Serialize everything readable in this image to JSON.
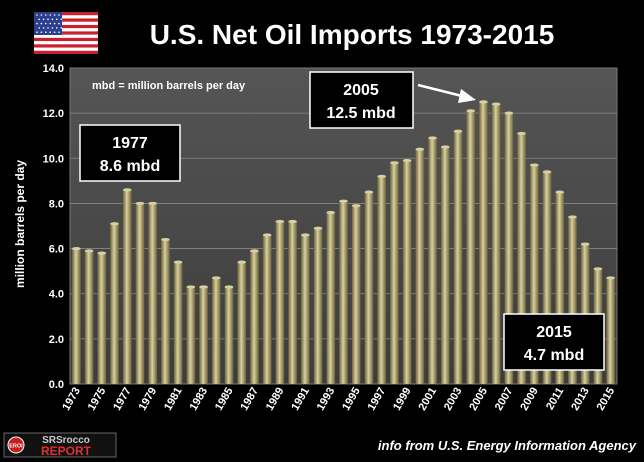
{
  "header": {
    "title": "U.S. Net Oil Imports 1973-2015",
    "flag_icon": "us-flag-icon"
  },
  "footer": {
    "logo_line1": "SRSrocco",
    "logo_line2": "REPORT",
    "logo_badge": "EROI",
    "source": "info from U.S. Energy Information Agency"
  },
  "colors": {
    "background": "#000000",
    "plot_background": "#4a4a4a",
    "grid": "#888888",
    "bar_light": "#d8d0a0",
    "bar_mid": "#a49a5e",
    "bar_dark": "#6b6236"
  },
  "chart_data": {
    "type": "bar",
    "title": "U.S. Net Oil Imports 1973-2015",
    "xlabel": "",
    "ylabel": "million barrels per day",
    "legend_note": "mbd = million barrels per day",
    "ylim": [
      0,
      14
    ],
    "yticks": [
      "0.0",
      "2.0",
      "4.0",
      "6.0",
      "8.0",
      "10.0",
      "12.0",
      "14.0"
    ],
    "grid": true,
    "categories": [
      "1973",
      "1974",
      "1975",
      "1976",
      "1977",
      "1978",
      "1979",
      "1980",
      "1981",
      "1982",
      "1983",
      "1984",
      "1985",
      "1986",
      "1987",
      "1988",
      "1989",
      "1990",
      "1991",
      "1992",
      "1993",
      "1994",
      "1995",
      "1996",
      "1997",
      "1998",
      "1999",
      "2000",
      "2001",
      "2002",
      "2003",
      "2004",
      "2005",
      "2006",
      "2007",
      "2008",
      "2009",
      "2010",
      "2011",
      "2012",
      "2013",
      "2014",
      "2015"
    ],
    "xtick_labels": [
      "1973",
      "1975",
      "1977",
      "1979",
      "1981",
      "1983",
      "1985",
      "1987",
      "1989",
      "1991",
      "1993",
      "1995",
      "1997",
      "1999",
      "2001",
      "2003",
      "2005",
      "2007",
      "2009",
      "2011",
      "2013",
      "2015"
    ],
    "values": [
      6.0,
      5.9,
      5.8,
      7.1,
      8.6,
      8.0,
      8.0,
      6.4,
      5.4,
      4.3,
      4.3,
      4.7,
      4.3,
      5.4,
      5.9,
      6.6,
      7.2,
      7.2,
      6.6,
      6.9,
      7.6,
      8.1,
      7.9,
      8.5,
      9.2,
      9.8,
      9.9,
      10.4,
      10.9,
      10.5,
      11.2,
      12.1,
      12.5,
      12.4,
      12.0,
      11.1,
      9.7,
      9.4,
      8.5,
      7.4,
      6.2,
      5.1,
      4.7
    ],
    "annotations": [
      {
        "year": "1977",
        "line1": "1977",
        "line2": "8.6 mbd"
      },
      {
        "year": "2005",
        "line1": "2005",
        "line2": "12.5 mbd"
      },
      {
        "year": "2015",
        "line1": "2015",
        "line2": "4.7 mbd"
      }
    ]
  }
}
